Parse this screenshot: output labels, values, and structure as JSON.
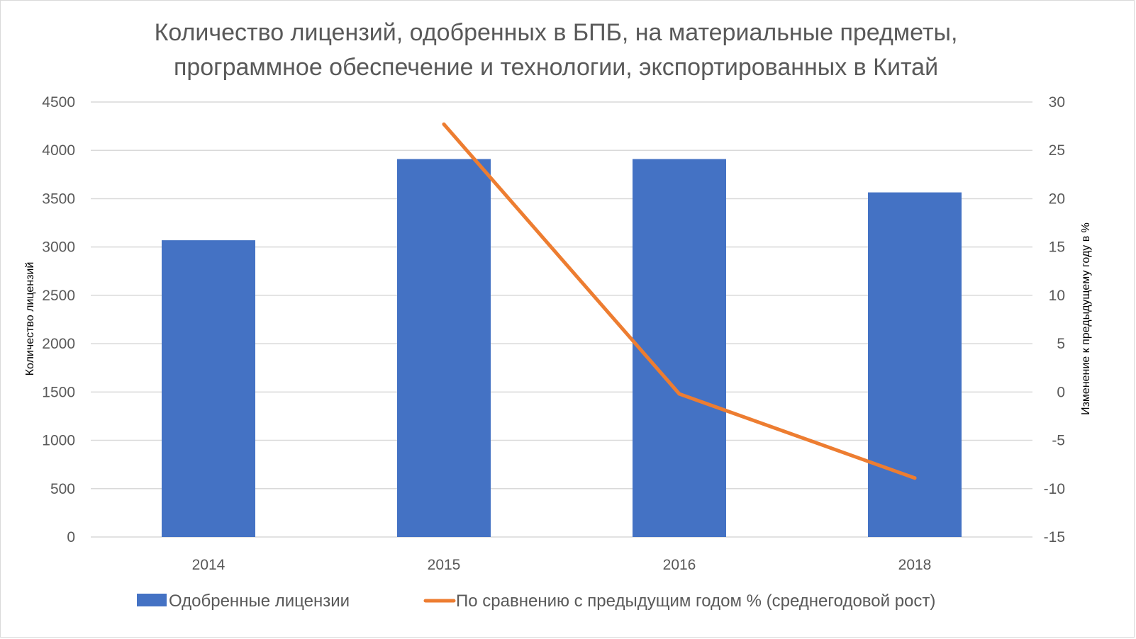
{
  "chart_data": {
    "type": "bar",
    "title_lines": [
      "Количество лицензий, одобренных в БПБ, на материальные предметы,",
      "программное обеспечение и технологии, экспортированных в Китай"
    ],
    "categories": [
      "2014",
      "2015",
      "2016",
      "2018"
    ],
    "series": [
      {
        "name": "Одобренные лицензии",
        "type": "bar",
        "axis": "left",
        "color": "#4472C4",
        "values": [
          3070,
          3910,
          3910,
          3565
        ]
      },
      {
        "name": "По сравнению с предыдущим годом % (среднегодовой рост)",
        "type": "line",
        "axis": "right",
        "color": "#ED7D31",
        "values": [
          null,
          27.7,
          -0.2,
          -8.9
        ]
      }
    ],
    "ylabel": "Количество лицензий",
    "y2label": "Изменение к предыдущему году в %",
    "ylim": [
      0,
      4500
    ],
    "y2lim": [
      -15,
      30
    ],
    "yticks": [
      "0",
      "500",
      "1000",
      "1500",
      "2000",
      "2500",
      "3000",
      "3500",
      "4000",
      "4500"
    ],
    "y2ticks": [
      "-15",
      "-10",
      "-5",
      "0",
      "5",
      "10",
      "15",
      "20",
      "25",
      "30"
    ],
    "grid": true,
    "legend_position": "bottom"
  }
}
